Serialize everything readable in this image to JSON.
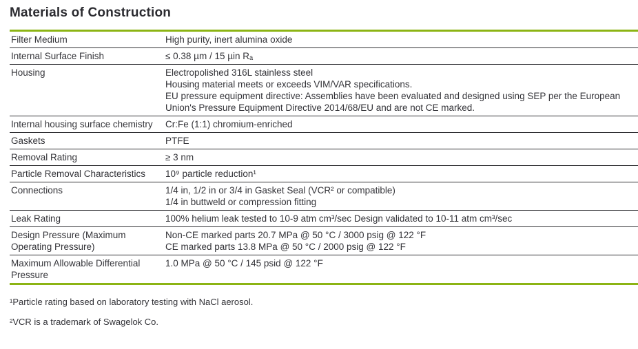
{
  "page": {
    "title": "Materials of Construction"
  },
  "colors": {
    "accent_green": "#8CB414",
    "text": "#333338",
    "row_divider": "#2E2E32"
  },
  "table": {
    "rows": [
      {
        "label": "Filter Medium",
        "values": [
          "High purity, inert alumina oxide"
        ]
      },
      {
        "label": "Internal Surface Finish",
        "values": [
          "≤ 0.38 µm / 15 µin Rₐ"
        ]
      },
      {
        "label": "Housing",
        "values": [
          "Electropolished 316L stainless steel",
          "Housing material meets or exceeds VIM/VAR specifications.",
          "EU pressure equipment directive: Assemblies have been evaluated and designed using SEP per the European Union's Pressure Equipment Directive 2014/68/EU and are not CE marked."
        ]
      },
      {
        "label": "Internal housing surface chemistry",
        "values": [
          "Cr:Fe (1:1) chromium-enriched"
        ]
      },
      {
        "label": "Gaskets",
        "values": [
          "PTFE"
        ]
      },
      {
        "label": "Removal Rating",
        "values": [
          "≥ 3 nm"
        ]
      },
      {
        "label": "Particle Removal Characteristics",
        "values": [
          "10⁹ particle reduction¹"
        ]
      },
      {
        "label": "Connections",
        "values": [
          "1/4 in, 1/2 in or 3/4 in Gasket Seal (VCR² or compatible)",
          "1/4 in buttweld or compression fitting"
        ]
      },
      {
        "label": "Leak Rating",
        "values": [
          "100% helium leak tested to 10-9 atm cm³/sec Design validated to 10-11 atm cm³/sec"
        ]
      },
      {
        "label": "Design Pressure (Maximum Operating Pressure)",
        "values": [
          "Non-CE marked parts 20.7 MPa @ 50 °C / 3000 psig @ 122 °F",
          "CE marked parts 13.8 MPa @ 50 °C / 2000 psig @ 122 °F"
        ]
      },
      {
        "label": "Maximum Allowable Differential Pressure",
        "values": [
          "1.0 MPa @ 50 °C / 145 psid @ 122 °F"
        ]
      }
    ]
  },
  "footnotes": [
    "¹Particle rating based on laboratory testing with NaCl aerosol.",
    "²VCR is a trademark of Swagelok Co."
  ]
}
